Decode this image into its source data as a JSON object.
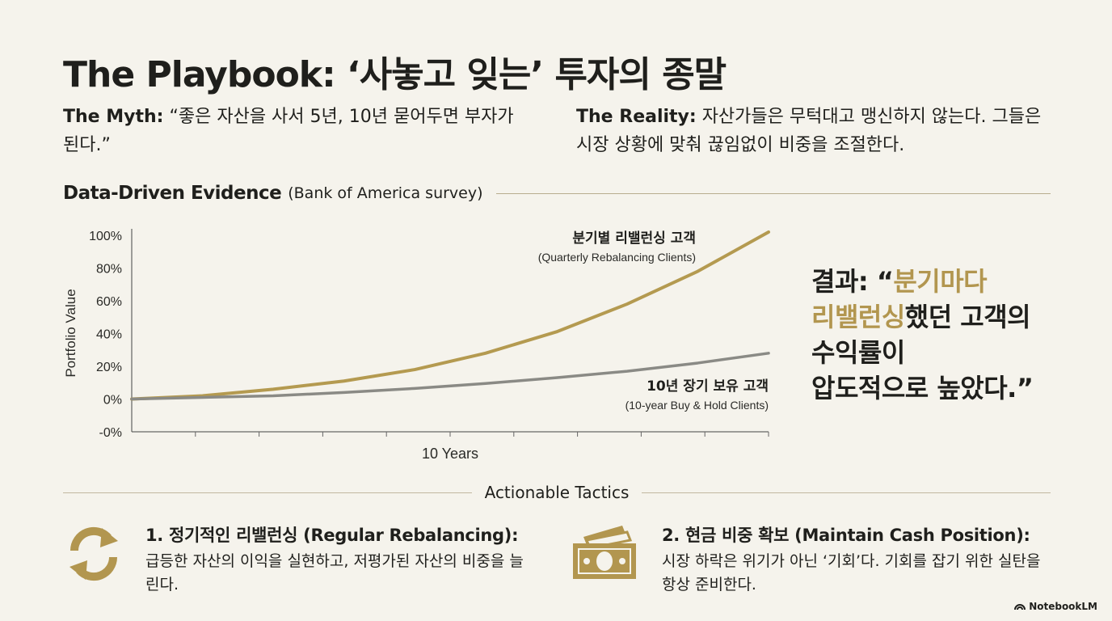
{
  "title": "The Playbook: ‘사놓고 잊는’ 투자의 종말",
  "myth": {
    "label": "The Myth:",
    "text": " “좋은 자산을 사서 5년, 10년 묻어두면 부자가 된다.”"
  },
  "reality": {
    "label": "The Reality:",
    "text": " 자산가들은 무턱대고 맹신하지 않는다. 그들은 시장 상황에 맞춰 끊임없이 비중을 조절한다."
  },
  "evidence": {
    "label": "Data-Driven Evidence",
    "source": "(Bank of America survey)"
  },
  "chart_data": {
    "type": "line",
    "ylabel": "Portfolio Value",
    "xlabel": "10 Years",
    "yticks": [
      "100%",
      "80%",
      "60%",
      "40%",
      "20%",
      "0%",
      "-0%"
    ],
    "ylim": [
      0,
      100
    ],
    "x": [
      0,
      1,
      2,
      3,
      4,
      5,
      6,
      7,
      8,
      9
    ],
    "series": [
      {
        "name": "분기별 리밸런싱 고객",
        "name_en": "(Quarterly Rebalancing Clients)",
        "color": "#b49a50",
        "values": [
          0,
          2,
          6,
          11,
          18,
          28,
          41,
          58,
          78,
          102
        ]
      },
      {
        "name": "10년 장기 보유 고객",
        "name_en": "(10-year Buy & Hold Clients)",
        "color": "#8a8a85",
        "values": [
          0,
          1,
          2,
          4,
          6.5,
          9.5,
          13,
          17,
          22,
          28
        ]
      }
    ],
    "grid": false
  },
  "result": {
    "prefix": "결과: “",
    "highlight1": "분기마다",
    "highlight2": "리밸런싱",
    "rest1": "했던 고객의",
    "rest2": "수익률이",
    "rest3": "압도적으로 높았다.”"
  },
  "tactics": {
    "heading": "Actionable Tactics",
    "items": [
      {
        "icon": "refresh-icon",
        "title": "1. 정기적인 리밸런싱 (Regular Rebalancing):",
        "desc": "급등한 자산의 이익을 실현하고, 저평가된 자산의 비중을 늘린다."
      },
      {
        "icon": "cash-icon",
        "title": "2. 현금 비중 확보 (Maintain Cash Position):",
        "desc": "시장 하락은 위기가 아닌 ‘기회’다. 기회를 잡기 위한 실탄을 항상 준비한다."
      }
    ]
  },
  "colors": {
    "accent": "#b2964f",
    "background": "#f5f3ec",
    "text": "#1f1f1c"
  },
  "brand": "NotebookLM"
}
